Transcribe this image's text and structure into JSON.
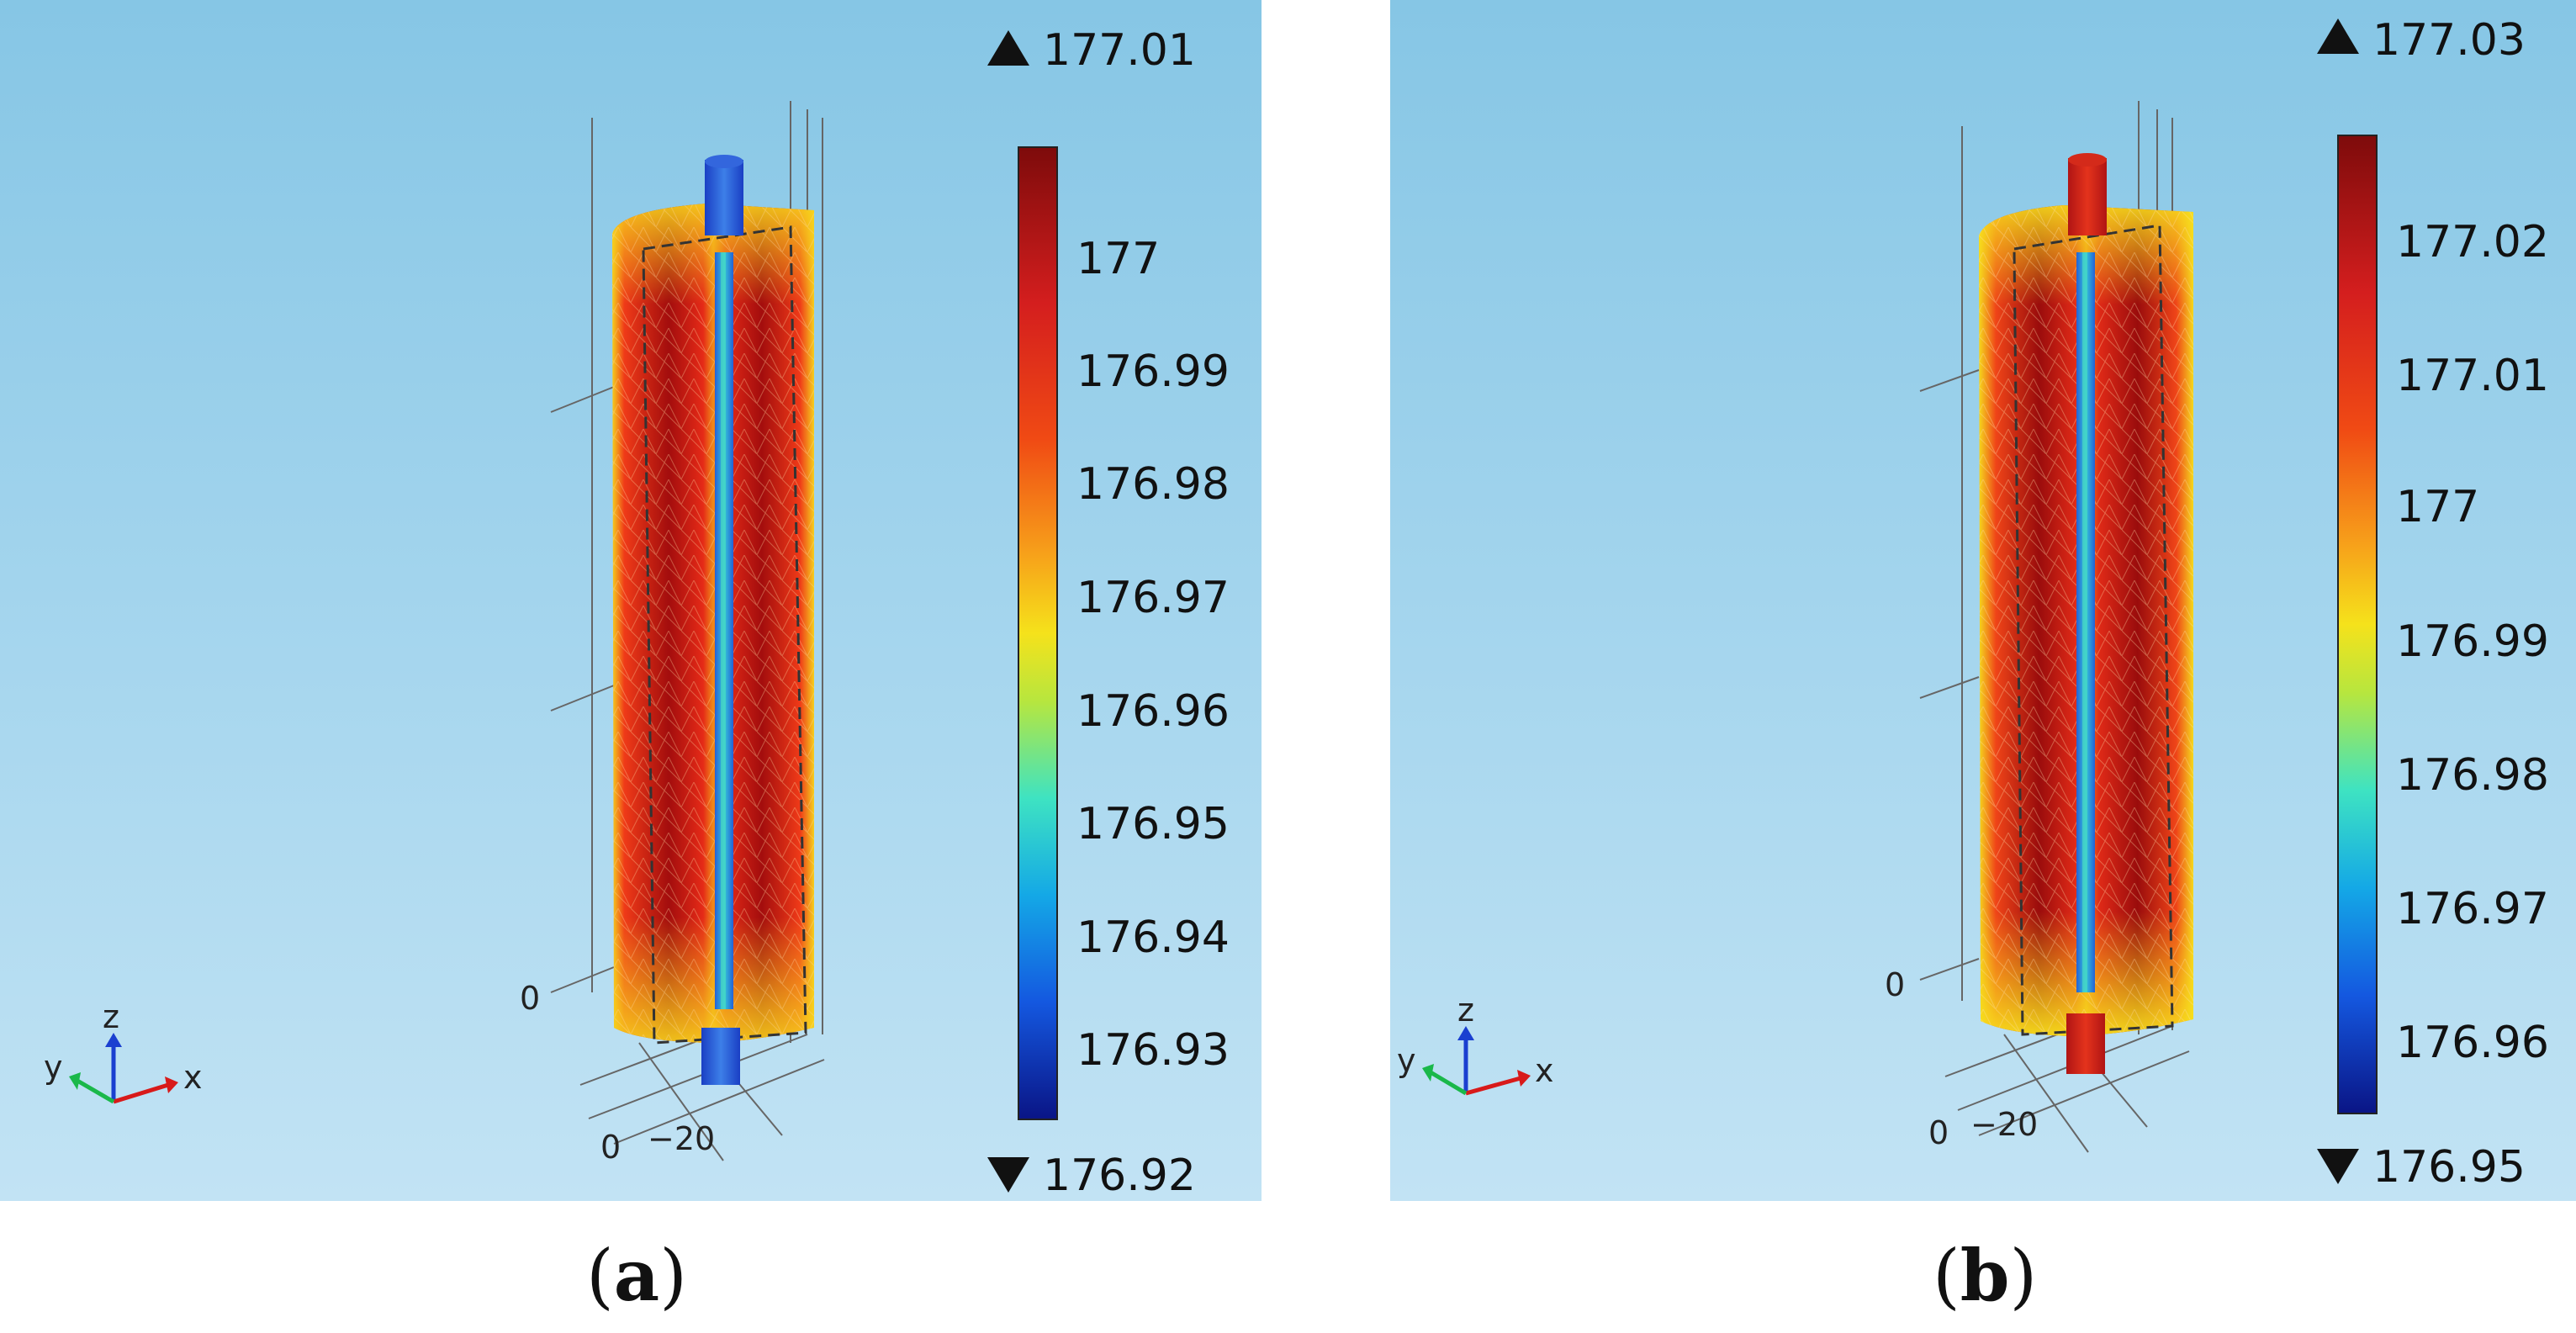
{
  "figure": {
    "panels": [
      {
        "label": "a",
        "colorbar": {
          "max": "177.01",
          "min": "176.92",
          "ticks": [
            "177",
            "176.99",
            "176.98",
            "176.97",
            "176.96",
            "176.95",
            "176.94",
            "176.93"
          ]
        },
        "axis_labels": {
          "z": "z",
          "y": "y",
          "x": "x",
          "z_tick": "0",
          "x_tick": "0",
          "y_tick": "−20"
        }
      },
      {
        "label": "b",
        "colorbar": {
          "max": "177.03",
          "min": "176.95",
          "ticks": [
            "177.02",
            "177.01",
            "177",
            "176.99",
            "176.98",
            "176.97",
            "176.96"
          ]
        },
        "axis_labels": {
          "z": "z",
          "y": "y",
          "x": "x",
          "z_tick": "0",
          "x_tick": "0",
          "y_tick": "−20"
        }
      }
    ]
  }
}
